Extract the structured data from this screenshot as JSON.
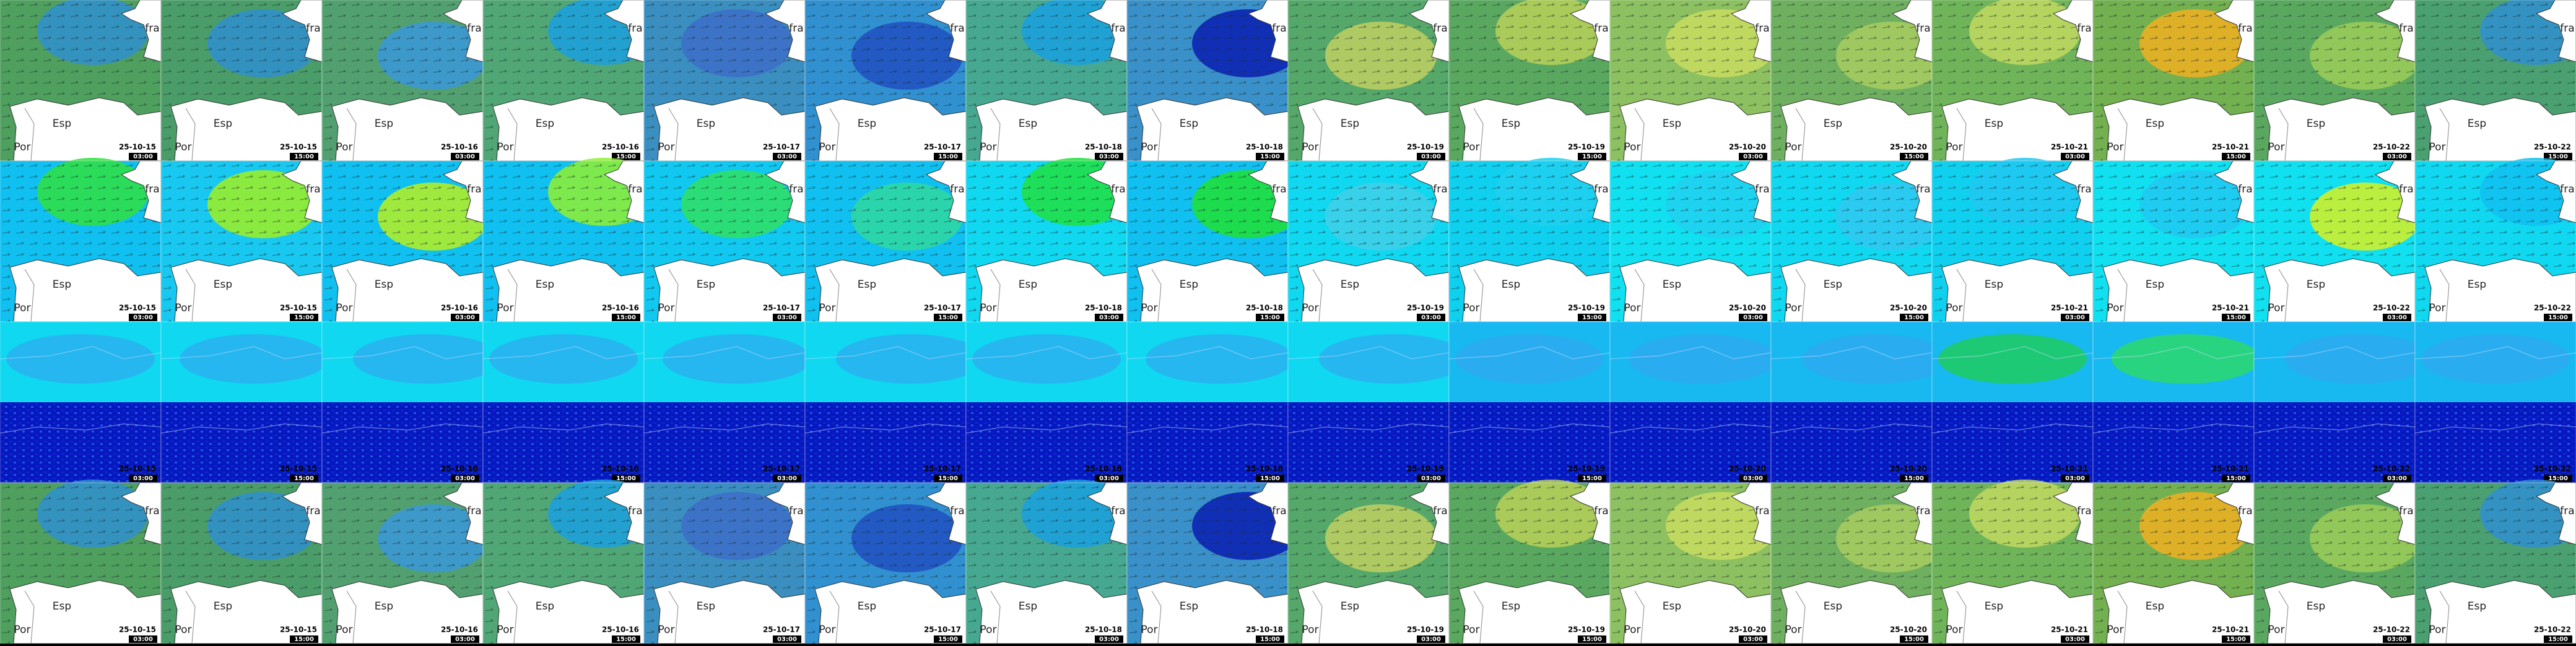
{
  "places": {
    "fra": "fra",
    "esp": "Esp",
    "por": "Por"
  },
  "dates": [
    "25-10-15",
    "25-10-15",
    "25-10-16",
    "25-10-16",
    "25-10-17",
    "25-10-17",
    "25-10-18",
    "25-10-18",
    "25-10-19",
    "25-10-19",
    "25-10-20",
    "25-10-20",
    "25-10-21",
    "25-10-21",
    "25-10-22",
    "25-10-22"
  ],
  "times": [
    "03:00",
    "15:00",
    "03:00",
    "15:00",
    "03:00",
    "15:00",
    "03:00",
    "15:00",
    "03:00",
    "15:00",
    "03:00",
    "15:00",
    "03:00",
    "15:00",
    "03:00",
    "15:00"
  ]
}
